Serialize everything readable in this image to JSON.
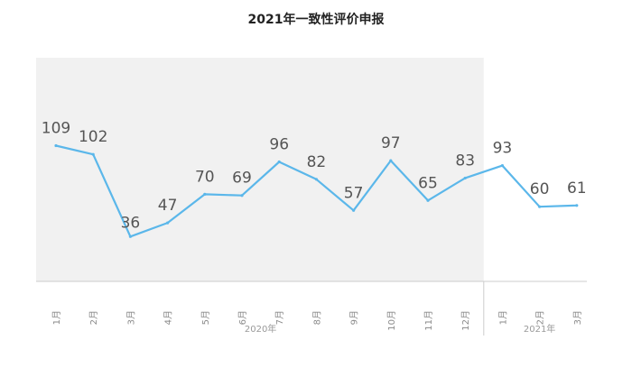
{
  "chart_data": {
    "type": "line",
    "title": "2021年一致性评价申报",
    "xlabel": "",
    "ylabel": "",
    "ylim": [
      0,
      140
    ],
    "grid": false,
    "legend": "none",
    "categories": [
      "1月",
      "2月",
      "3月",
      "4月",
      "5月",
      "6月",
      "7月",
      "8月",
      "9月",
      "10月",
      "11月",
      "12月",
      "1月",
      "2月",
      "3月"
    ],
    "category_groups": [
      {
        "label": "2020年",
        "start": 0,
        "end": 11
      },
      {
        "label": "2021年",
        "start": 12,
        "end": 14
      }
    ],
    "series": [
      {
        "values": [
          109,
          102,
          36,
          47,
          70,
          69,
          96,
          82,
          57,
          97,
          65,
          83,
          93,
          60,
          61
        ]
      }
    ],
    "highlight_range": [
      0,
      11
    ]
  },
  "colors": {
    "line": "#5bb7ea",
    "shade": "#f1f1f1",
    "axis": "#cccccc",
    "title": "#222222",
    "labels": "#555555",
    "ticks": "#8a8a8a"
  }
}
